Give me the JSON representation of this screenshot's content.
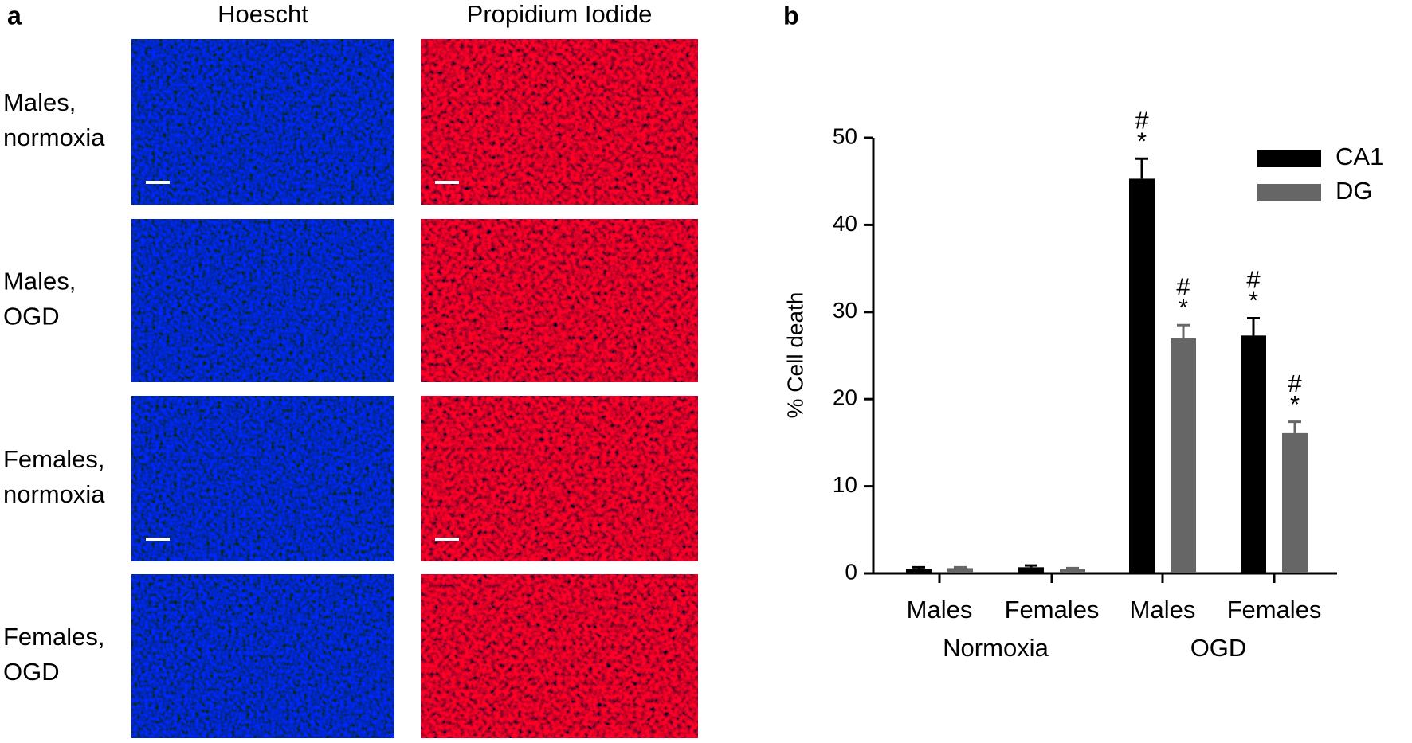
{
  "panel_a": {
    "label": "a",
    "columns": [
      "Hoescht",
      "Propidium Iodide"
    ],
    "rows": [
      [
        "Males,",
        "normoxia"
      ],
      [
        "Males,",
        "OGD"
      ],
      [
        "Females,",
        "normoxia"
      ],
      [
        "Females,",
        "OGD"
      ]
    ]
  },
  "chart_data": {
    "type": "bar",
    "panel_label": "b",
    "ylabel": "% Cell death",
    "categories": [
      "Males",
      "Females",
      "Males",
      "Females"
    ],
    "groups": [
      {
        "label": "Normoxia",
        "categories": [
          0,
          1
        ]
      },
      {
        "label": "OGD",
        "categories": [
          2,
          3
        ]
      }
    ],
    "series": [
      {
        "name": "CA1",
        "color": "#000000",
        "values": [
          0.5,
          0.7,
          45.3,
          27.3
        ],
        "errors": [
          0.2,
          0.2,
          2.3,
          2.0
        ],
        "markers": [
          null,
          null,
          [
            "#",
            "*"
          ],
          [
            "#",
            "*"
          ]
        ]
      },
      {
        "name": "DG",
        "color": "#666666",
        "values": [
          0.6,
          0.5,
          27.0,
          16.1
        ],
        "errors": [
          0.1,
          0.1,
          1.5,
          1.3
        ],
        "markers": [
          null,
          null,
          [
            "#",
            "*"
          ],
          [
            "#",
            "*"
          ]
        ]
      }
    ],
    "ylim": [
      0,
      50
    ],
    "yticks": [
      0,
      10,
      20,
      30,
      40,
      50
    ],
    "grid": false,
    "legend": "top-right"
  }
}
